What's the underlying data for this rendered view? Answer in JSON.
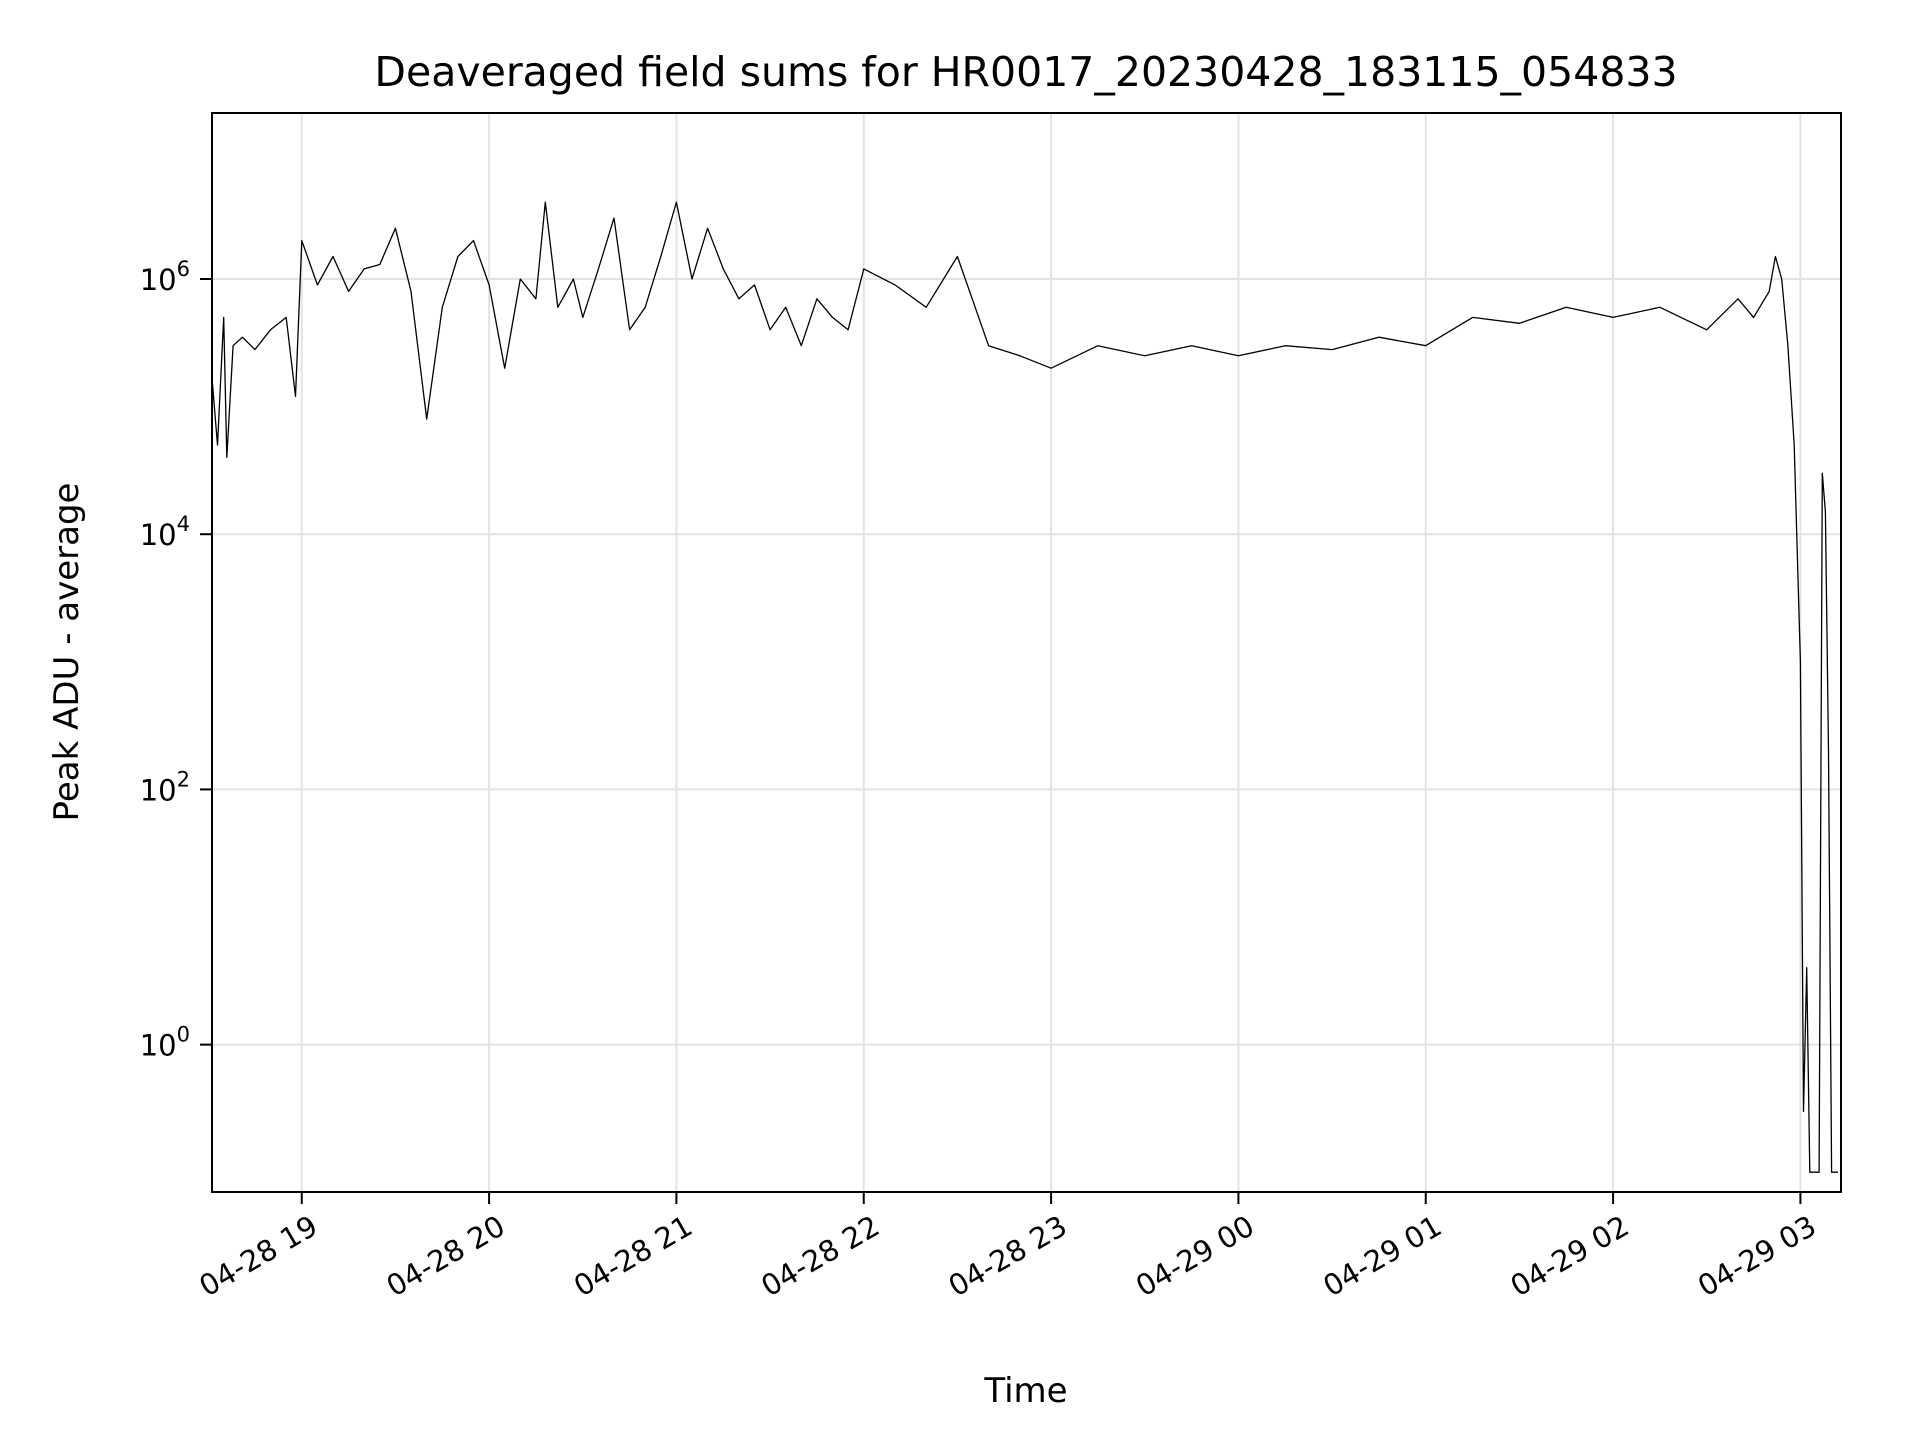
{
  "chart_data": {
    "type": "line",
    "title": "Deaveraged field sums for HR0017_20230428_183115_054833",
    "xlabel": "Time",
    "ylabel": "Peak ADU - average",
    "yscale": "log",
    "ylim": [
      0.07,
      20000000
    ],
    "xlim": [
      "2023-04-28 18:31:15",
      "2023-04-29 03:13:00"
    ],
    "grid": true,
    "x_ticks": [
      {
        "value": "2023-04-28 19:00",
        "label": "04-28 19"
      },
      {
        "value": "2023-04-28 20:00",
        "label": "04-28 20"
      },
      {
        "value": "2023-04-28 21:00",
        "label": "04-28 21"
      },
      {
        "value": "2023-04-28 22:00",
        "label": "04-28 22"
      },
      {
        "value": "2023-04-28 23:00",
        "label": "04-28 23"
      },
      {
        "value": "2023-04-29 00:00",
        "label": "04-29 00"
      },
      {
        "value": "2023-04-29 01:00",
        "label": "04-29 01"
      },
      {
        "value": "2023-04-29 02:00",
        "label": "04-29 02"
      },
      {
        "value": "2023-04-29 03:00",
        "label": "04-29 03"
      }
    ],
    "y_ticks": [
      {
        "value": 1,
        "base": "10",
        "exp": "0"
      },
      {
        "value": 100,
        "base": "10",
        "exp": "2"
      },
      {
        "value": 10000,
        "base": "10",
        "exp": "4"
      },
      {
        "value": 1000000,
        "base": "10",
        "exp": "6"
      }
    ],
    "series": [
      {
        "color": "#000000",
        "x": [
          "2023-04-28 18:31",
          "2023-04-28 18:33",
          "2023-04-28 18:35",
          "2023-04-28 18:36",
          "2023-04-28 18:38",
          "2023-04-28 18:41",
          "2023-04-28 18:45",
          "2023-04-28 18:50",
          "2023-04-28 18:55",
          "2023-04-28 18:58",
          "2023-04-28 19:00",
          "2023-04-28 19:05",
          "2023-04-28 19:10",
          "2023-04-28 19:15",
          "2023-04-28 19:20",
          "2023-04-28 19:25",
          "2023-04-28 19:30",
          "2023-04-28 19:35",
          "2023-04-28 19:40",
          "2023-04-28 19:45",
          "2023-04-28 19:50",
          "2023-04-28 19:55",
          "2023-04-28 20:00",
          "2023-04-28 20:05",
          "2023-04-28 20:10",
          "2023-04-28 20:15",
          "2023-04-28 20:18",
          "2023-04-28 20:22",
          "2023-04-28 20:27",
          "2023-04-28 20:30",
          "2023-04-28 20:35",
          "2023-04-28 20:40",
          "2023-04-28 20:45",
          "2023-04-28 20:50",
          "2023-04-28 20:55",
          "2023-04-28 21:00",
          "2023-04-28 21:05",
          "2023-04-28 21:10",
          "2023-04-28 21:15",
          "2023-04-28 21:20",
          "2023-04-28 21:25",
          "2023-04-28 21:30",
          "2023-04-28 21:35",
          "2023-04-28 21:40",
          "2023-04-28 21:45",
          "2023-04-28 21:50",
          "2023-04-28 21:55",
          "2023-04-28 22:00",
          "2023-04-28 22:10",
          "2023-04-28 22:20",
          "2023-04-28 22:30",
          "2023-04-28 22:40",
          "2023-04-28 22:50",
          "2023-04-28 23:00",
          "2023-04-28 23:15",
          "2023-04-28 23:30",
          "2023-04-28 23:45",
          "2023-04-29 00:00",
          "2023-04-29 00:15",
          "2023-04-29 00:30",
          "2023-04-29 00:45",
          "2023-04-29 01:00",
          "2023-04-29 01:15",
          "2023-04-29 01:30",
          "2023-04-29 01:45",
          "2023-04-29 02:00",
          "2023-04-29 02:15",
          "2023-04-29 02:30",
          "2023-04-29 02:40",
          "2023-04-29 02:45",
          "2023-04-29 02:50",
          "2023-04-29 02:52",
          "2023-04-29 02:54",
          "2023-04-29 02:56",
          "2023-04-29 02:58",
          "2023-04-29 03:00",
          "2023-04-29 03:01",
          "2023-04-29 03:02",
          "2023-04-29 03:03",
          "2023-04-29 03:05",
          "2023-04-29 03:06",
          "2023-04-29 03:07",
          "2023-04-29 03:08",
          "2023-04-29 03:09",
          "2023-04-29 03:10",
          "2023-04-29 03:12"
        ],
        "y": [
          200000,
          50000,
          500000,
          40000,
          300000,
          350000,
          280000,
          400000,
          500000,
          120000,
          2000000,
          900000,
          1500000,
          800000,
          1200000,
          1300000,
          2500000,
          800000,
          80000,
          600000,
          1500000,
          2000000,
          900000,
          200000,
          1000000,
          700000,
          4000000,
          600000,
          1000000,
          500000,
          1200000,
          3000000,
          400000,
          600000,
          1500000,
          4000000,
          1000000,
          2500000,
          1200000,
          700000,
          900000,
          400000,
          600000,
          300000,
          700000,
          500000,
          400000,
          1200000,
          900000,
          600000,
          1500000,
          300000,
          250000,
          200000,
          300000,
          250000,
          300000,
          250000,
          300000,
          280000,
          350000,
          300000,
          500000,
          450000,
          600000,
          500000,
          600000,
          400000,
          700000,
          500000,
          800000,
          1500000,
          1000000,
          300000,
          50000,
          1000,
          0.3,
          4,
          0.1,
          0.1,
          0.1,
          30000,
          15000,
          200,
          0.1,
          0.1
        ]
      }
    ]
  }
}
